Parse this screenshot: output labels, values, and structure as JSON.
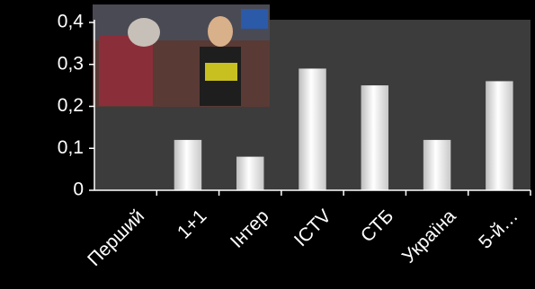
{
  "chart_data": {
    "type": "bar",
    "categories": [
      "Перший",
      "1+1",
      "Інтер",
      "ICTV",
      "СТБ",
      "Україна",
      "5-й…"
    ],
    "values": [
      0,
      0.12,
      0.08,
      0.29,
      0.25,
      0.12,
      0.26
    ],
    "color": "#e8e8e8",
    "ylim": [
      0,
      0.4
    ],
    "yticks": [
      0,
      {
        "value": 0.1,
        "label": "0,1"
      },
      {
        "value": 0.2,
        "label": "0,2"
      },
      {
        "value": 0.3,
        "label": "0,3"
      },
      {
        "value": 0.4,
        "label": "0,4"
      }
    ]
  }
}
